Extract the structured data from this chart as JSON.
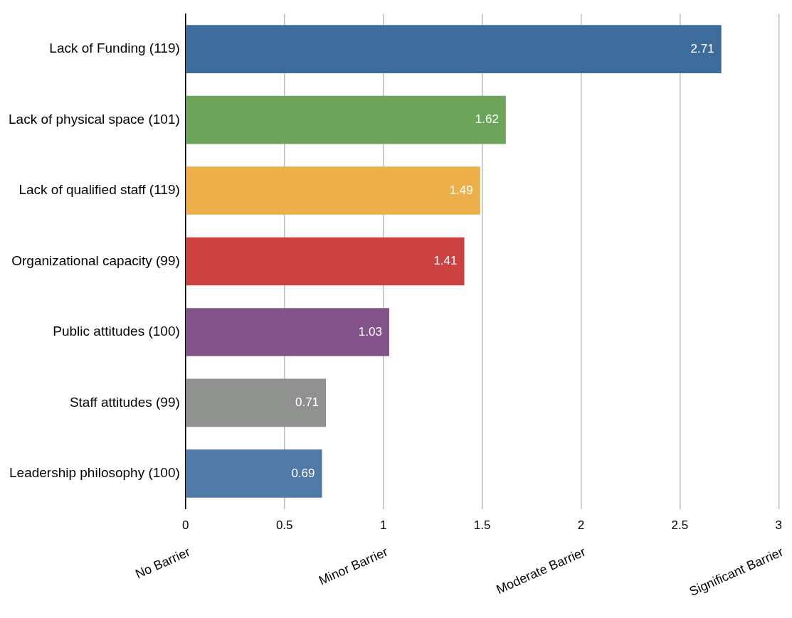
{
  "chart_data": {
    "type": "bar",
    "orientation": "horizontal",
    "categories": [
      "Lack of Funding (119)",
      "Lack of physical space (101)",
      "Lack of qualified staff (119)",
      "Organizational capacity (99)",
      "Public attitudes (100)",
      "Staff attitudes (99)",
      "Leadership philosophy (100)"
    ],
    "values": [
      2.71,
      1.62,
      1.49,
      1.41,
      1.03,
      0.71,
      0.69
    ],
    "colors": [
      "#3d6b9c",
      "#6ca55a",
      "#ecaf4a",
      "#cb4240",
      "#83528a",
      "#8f918f",
      "#5079a8"
    ],
    "xlim": [
      0,
      3
    ],
    "xticks": [
      0,
      0.5,
      1,
      1.5,
      2,
      2.5,
      3
    ],
    "grid": "x",
    "data_labels": true,
    "annotations": [
      "No Barrier",
      "Minor Barrier",
      "Moderate Barrier",
      "Significant Barrier"
    ]
  }
}
